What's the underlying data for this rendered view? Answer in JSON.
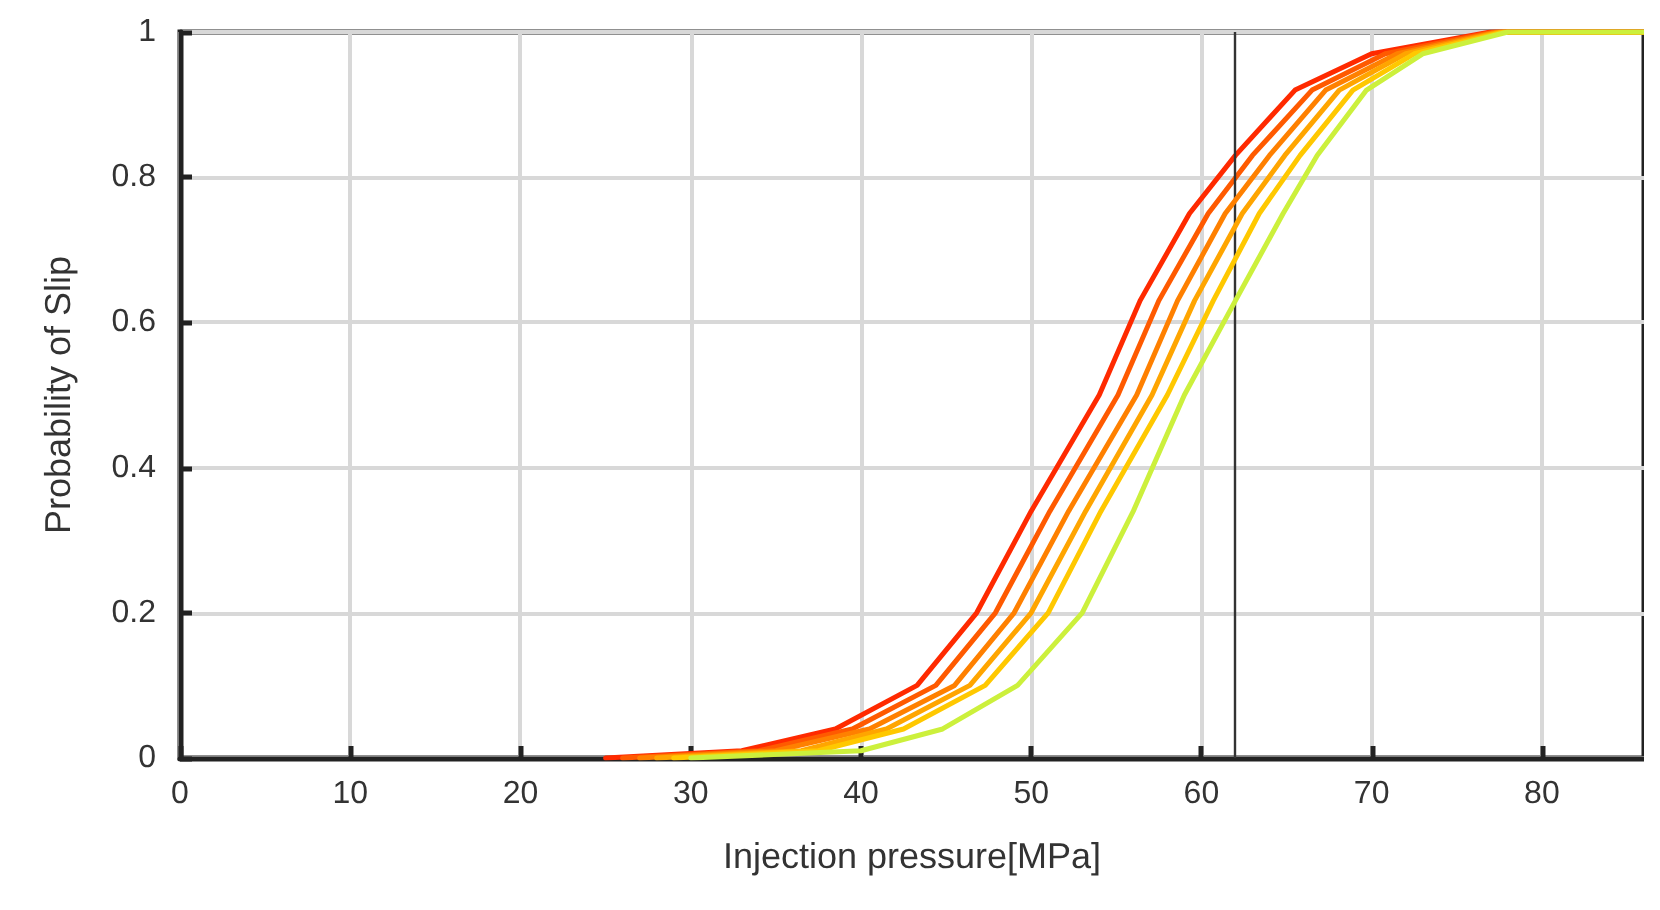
{
  "chart_data": {
    "type": "line",
    "xlabel": "Injection pressure[MPa]",
    "ylabel": "Probability of Slip",
    "xlim": [
      0,
      86
    ],
    "xticks": [
      0,
      10,
      20,
      30,
      40,
      50,
      60,
      70,
      80
    ],
    "ylim": [
      0,
      1
    ],
    "yticks": [
      0,
      0.2,
      0.4,
      0.6,
      0.8,
      1
    ],
    "grid": true,
    "legend": false,
    "marker": "none",
    "line_style": "solid",
    "ref_lines": [
      {
        "axis": "x",
        "value": 62,
        "color": "#333333"
      }
    ],
    "series": [
      {
        "color": "#ff2a00",
        "x": [
          25,
          33,
          38.5,
          43.3,
          46.8,
          50,
          54,
          56.4,
          59.3,
          62,
          65.5,
          70,
          77,
          86
        ],
        "values": [
          0,
          0.01,
          0.04,
          0.1,
          0.2,
          0.34,
          0.5,
          0.63,
          0.75,
          0.83,
          0.92,
          0.97,
          1,
          1
        ]
      },
      {
        "color": "#ff5a00",
        "x": [
          26,
          34,
          39.5,
          44.4,
          47.9,
          51.1,
          55.1,
          57.5,
          60.4,
          63,
          66.5,
          70.8,
          77.2,
          86
        ],
        "values": [
          0,
          0.01,
          0.04,
          0.1,
          0.2,
          0.34,
          0.5,
          0.63,
          0.75,
          0.83,
          0.92,
          0.97,
          1,
          1
        ]
      },
      {
        "color": "#ff8000",
        "x": [
          27,
          35,
          40.5,
          45.5,
          49,
          52.2,
          56.2,
          58.6,
          61.4,
          64,
          67.3,
          71.5,
          77.4,
          86
        ],
        "values": [
          0,
          0.01,
          0.04,
          0.1,
          0.2,
          0.34,
          0.5,
          0.63,
          0.75,
          0.83,
          0.92,
          0.97,
          1,
          1
        ]
      },
      {
        "color": "#ffa500",
        "x": [
          28,
          36.5,
          41.5,
          46.4,
          50,
          53.2,
          57.1,
          59.6,
          62.4,
          64.9,
          68.1,
          72,
          77.6,
          86
        ],
        "values": [
          0,
          0.01,
          0.04,
          0.1,
          0.2,
          0.34,
          0.5,
          0.63,
          0.75,
          0.83,
          0.92,
          0.97,
          1,
          1
        ]
      },
      {
        "color": "#ffc800",
        "x": [
          29,
          37.5,
          42.5,
          47.3,
          51,
          54.1,
          58,
          60.7,
          63.4,
          65.8,
          68.9,
          72.5,
          77.8,
          86
        ],
        "values": [
          0,
          0.01,
          0.04,
          0.1,
          0.2,
          0.34,
          0.5,
          0.63,
          0.75,
          0.83,
          0.92,
          0.97,
          1,
          1
        ]
      },
      {
        "color": "#ccf03c",
        "x": [
          30,
          40,
          44.8,
          49.2,
          53,
          56,
          59,
          62,
          64.8,
          66.8,
          69.7,
          73,
          78,
          86
        ],
        "values": [
          0,
          0.01,
          0.04,
          0.1,
          0.2,
          0.34,
          0.5,
          0.63,
          0.75,
          0.83,
          0.92,
          0.97,
          1,
          1
        ]
      }
    ]
  }
}
